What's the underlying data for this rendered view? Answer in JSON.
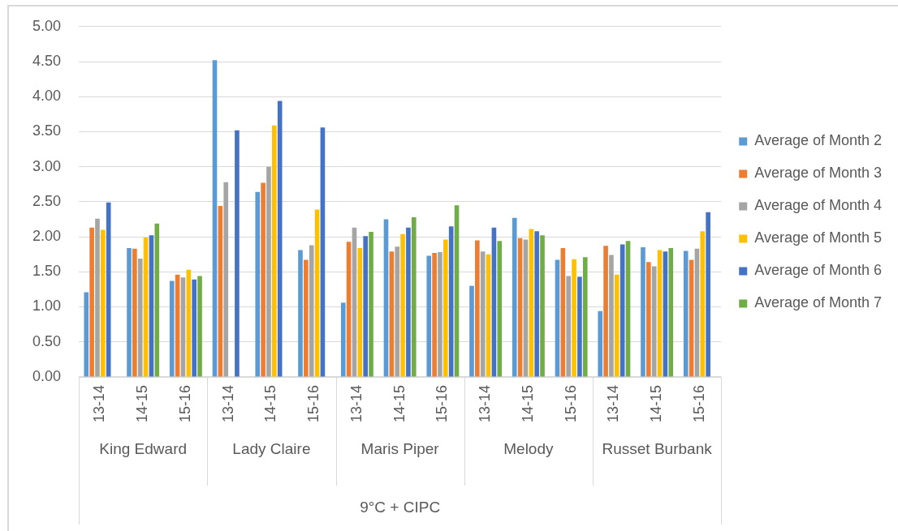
{
  "chart_data": {
    "type": "bar",
    "categories": [
      "13-14",
      "14-15",
      "15-16",
      "13-14",
      "14-15",
      "15-16",
      "13-14",
      "14-15",
      "15-16",
      "13-14",
      "14-15",
      "15-16",
      "13-14",
      "14-15",
      "15-16"
    ],
    "series": [
      {
        "name": "Average of Month 2",
        "color": "#5b9bd5",
        "values": [
          1.21,
          1.84,
          1.37,
          4.52,
          2.64,
          1.81,
          1.06,
          2.25,
          1.73,
          1.3,
          2.27,
          1.67,
          0.94,
          1.85,
          1.8
        ]
      },
      {
        "name": "Average of Month 3",
        "color": "#ed7d31",
        "values": [
          2.13,
          1.83,
          1.46,
          2.44,
          2.77,
          1.67,
          1.93,
          1.79,
          1.77,
          1.95,
          1.98,
          1.84,
          1.87,
          1.64,
          1.67
        ]
      },
      {
        "name": "Average of Month 4",
        "color": "#a5a5a5",
        "values": [
          2.26,
          1.69,
          1.42,
          2.78,
          3.0,
          1.88,
          2.13,
          1.86,
          1.78,
          1.79,
          1.96,
          1.44,
          1.74,
          1.58,
          1.83
        ]
      },
      {
        "name": "Average of Month 5",
        "color": "#ffc000",
        "values": [
          2.1,
          1.99,
          1.53,
          null,
          3.59,
          2.39,
          1.84,
          2.04,
          1.96,
          1.75,
          2.11,
          1.68,
          1.46,
          1.81,
          2.08
        ]
      },
      {
        "name": "Average of Month 6",
        "color": "#4472c4",
        "values": [
          2.49,
          2.02,
          1.39,
          3.52,
          3.94,
          3.56,
          2.01,
          2.13,
          2.15,
          2.13,
          2.08,
          1.43,
          1.89,
          1.79,
          2.35
        ]
      },
      {
        "name": "Average of Month 7",
        "color": "#70ad47",
        "values": [
          null,
          2.19,
          1.44,
          null,
          null,
          null,
          2.07,
          2.28,
          2.45,
          1.94,
          2.02,
          1.71,
          1.94,
          1.84,
          null
        ]
      }
    ],
    "annotations": [
      "King Edward",
      "Lady Claire",
      "Maris Piper",
      "Melody",
      "Russet Burbank",
      "9°C + CIPC"
    ],
    "ylim": [
      0,
      5
    ],
    "yticks": [
      {
        "value": 0,
        "label": "0.00"
      },
      {
        "value": 0.5,
        "label": "0.50"
      },
      {
        "value": 1,
        "label": "1.00"
      },
      {
        "value": 1.5,
        "label": "1.50"
      },
      {
        "value": 2,
        "label": "2.00"
      },
      {
        "value": 2.5,
        "label": "2.50"
      },
      {
        "value": 3,
        "label": "3.00"
      },
      {
        "value": 3.5,
        "label": "3.50"
      },
      {
        "value": 4,
        "label": "4.00"
      },
      {
        "value": 4.5,
        "label": "4.50"
      },
      {
        "value": 5,
        "label": "5.00"
      }
    ],
    "grid": "y",
    "legend": "right"
  }
}
